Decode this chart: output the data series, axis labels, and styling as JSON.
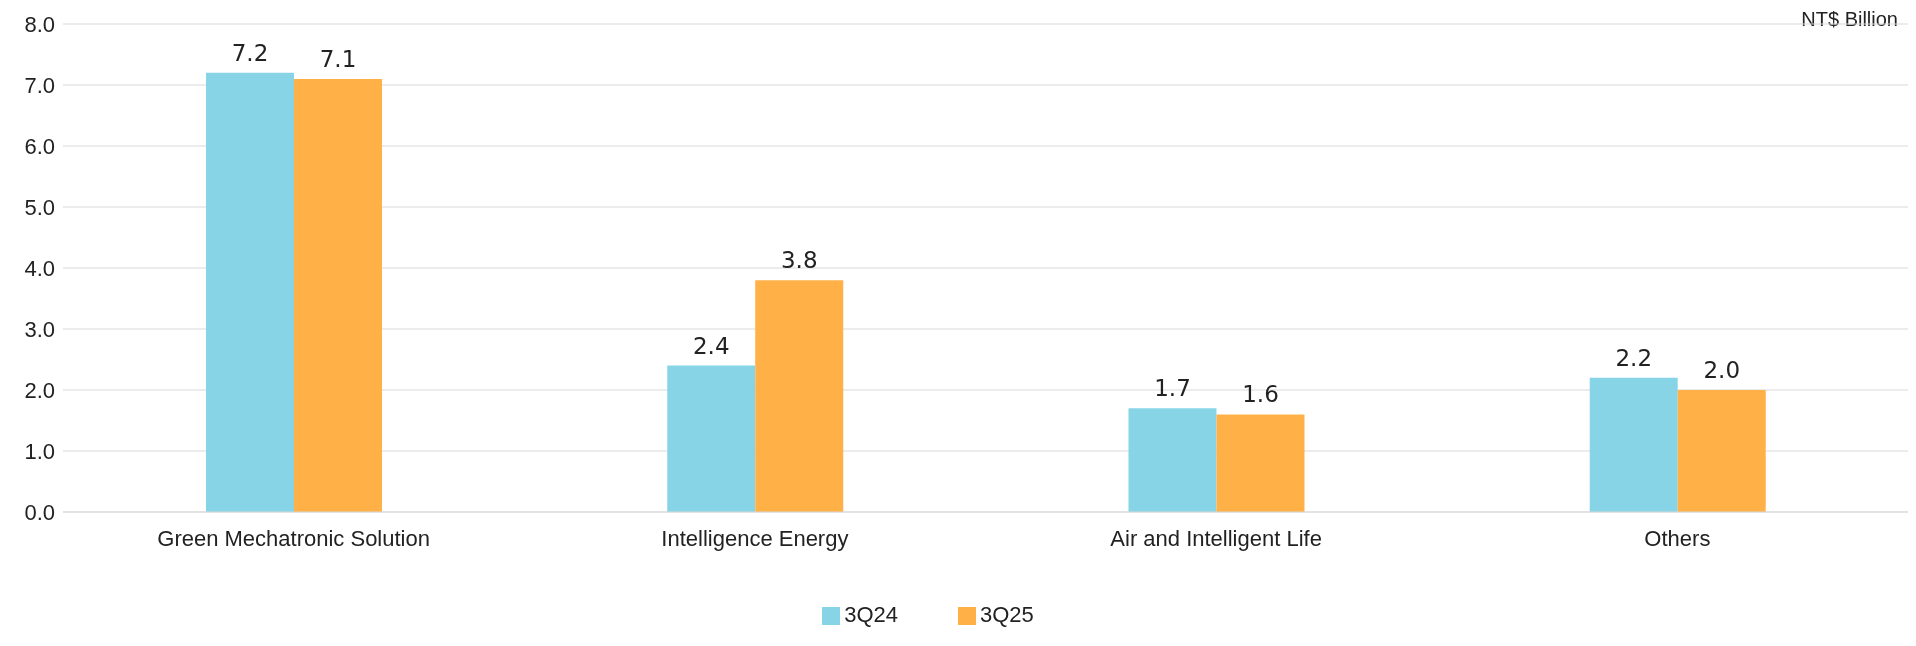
{
  "chart_data": {
    "type": "bar",
    "ylabel": "NT$ Billion",
    "categories": [
      "Green Mechatronic Solution",
      "Intelligence Energy",
      "Air and Intelligent Life",
      "Others"
    ],
    "series": [
      {
        "name": "3Q24",
        "color": "#87d4e6",
        "values": [
          7.2,
          2.4,
          1.7,
          2.2
        ],
        "value_labels": [
          "7.2",
          "2.4",
          "1.7",
          "2.2"
        ]
      },
      {
        "name": "3Q25",
        "color": "#ffb047",
        "values": [
          7.1,
          3.8,
          1.6,
          2.0
        ],
        "value_labels": [
          "7.1",
          "3.8",
          "1.6",
          "2.0"
        ]
      }
    ],
    "ylim": [
      0,
      8
    ],
    "yticks": [
      {
        "value": 0,
        "label": "0.0"
      },
      {
        "value": 1,
        "label": "1.0"
      },
      {
        "value": 2,
        "label": "2.0"
      },
      {
        "value": 3,
        "label": "3.0"
      },
      {
        "value": 4,
        "label": "4.0"
      },
      {
        "value": 5,
        "label": "5.0"
      },
      {
        "value": 6,
        "label": "6.0"
      },
      {
        "value": 7,
        "label": "7.0"
      },
      {
        "value": 8,
        "label": "8.0"
      }
    ],
    "grid": "y",
    "legend": "bottom"
  }
}
